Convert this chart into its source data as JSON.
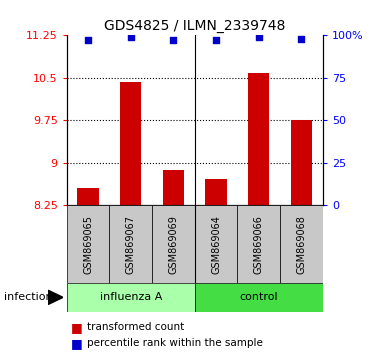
{
  "title": "GDS4825 / ILMN_2339748",
  "samples": [
    "GSM869065",
    "GSM869067",
    "GSM869069",
    "GSM869064",
    "GSM869066",
    "GSM869068"
  ],
  "bar_values": [
    8.55,
    10.42,
    8.88,
    8.72,
    10.58,
    9.75
  ],
  "percentile_values": [
    97,
    99,
    97,
    97,
    99,
    98
  ],
  "ylim_left": [
    8.25,
    11.25
  ],
  "ylim_right": [
    0,
    100
  ],
  "yticks_left": [
    8.25,
    9.0,
    9.75,
    10.5,
    11.25
  ],
  "ytick_labels_left": [
    "8.25",
    "9",
    "9.75",
    "10.5",
    "11.25"
  ],
  "yticks_right": [
    0,
    25,
    50,
    75,
    100
  ],
  "ytick_labels_right": [
    "0",
    "25",
    "50",
    "75",
    "100%"
  ],
  "grid_lines": [
    9.0,
    9.75,
    10.5
  ],
  "bar_color": "#CC0000",
  "dot_color": "#0000CC",
  "influenza_label": "influenza A",
  "control_label": "control",
  "group_label": "infection",
  "legend_bar_label": "transformed count",
  "legend_dot_label": "percentile rank within the sample",
  "light_green": "#AAFFAA",
  "green": "#44DD44",
  "gray_bg": "#C8C8C8",
  "bg_color": "#FFFFFF"
}
